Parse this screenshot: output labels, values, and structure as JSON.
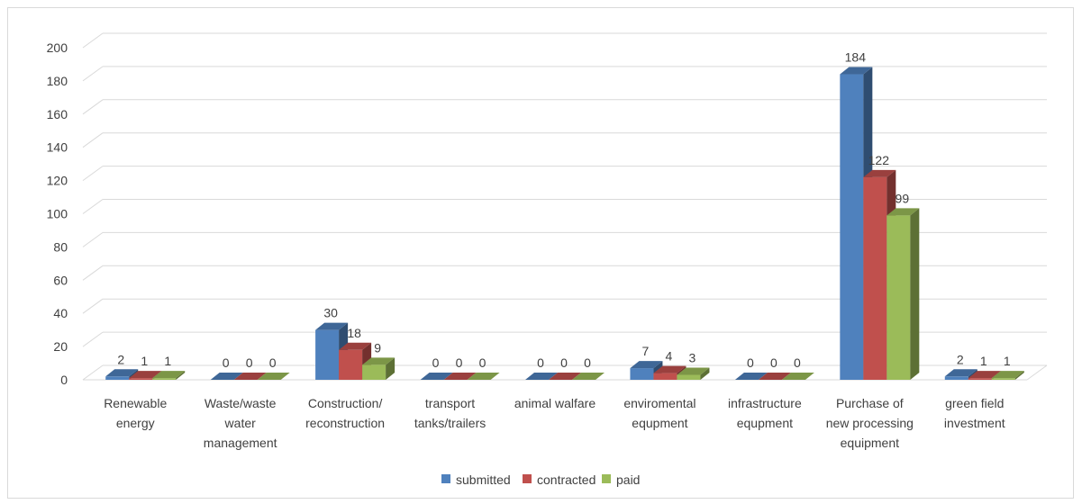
{
  "chart_data": {
    "type": "bar",
    "variant": "3d-clustered-column",
    "title": "",
    "xlabel": "",
    "ylabel": "",
    "ylim": [
      0,
      200
    ],
    "yticks": [
      0,
      20,
      40,
      60,
      80,
      100,
      120,
      140,
      160,
      180,
      200
    ],
    "grid": true,
    "legend_position": "bottom",
    "categories": [
      [
        "Renewable",
        "energy"
      ],
      [
        "Waste/waste",
        "water",
        "management"
      ],
      [
        "Construction/",
        "reconstruction"
      ],
      [
        "transport",
        "tanks/trailers"
      ],
      [
        "animal walfare"
      ],
      [
        "enviromental",
        "equpment"
      ],
      [
        "infrastructure",
        "equpment"
      ],
      [
        "Purchase of",
        "new processing",
        "equipment"
      ],
      [
        "green field",
        "investment"
      ]
    ],
    "series": [
      {
        "name": "submitted",
        "color": "#4F81BD",
        "values": [
          2,
          0,
          30,
          0,
          0,
          7,
          0,
          184,
          2
        ]
      },
      {
        "name": "contracted",
        "color": "#C0504D",
        "values": [
          1,
          0,
          18,
          0,
          0,
          4,
          0,
          122,
          1
        ]
      },
      {
        "name": "paid",
        "color": "#9BBB59",
        "values": [
          1,
          0,
          9,
          0,
          0,
          3,
          0,
          99,
          1
        ]
      }
    ]
  }
}
